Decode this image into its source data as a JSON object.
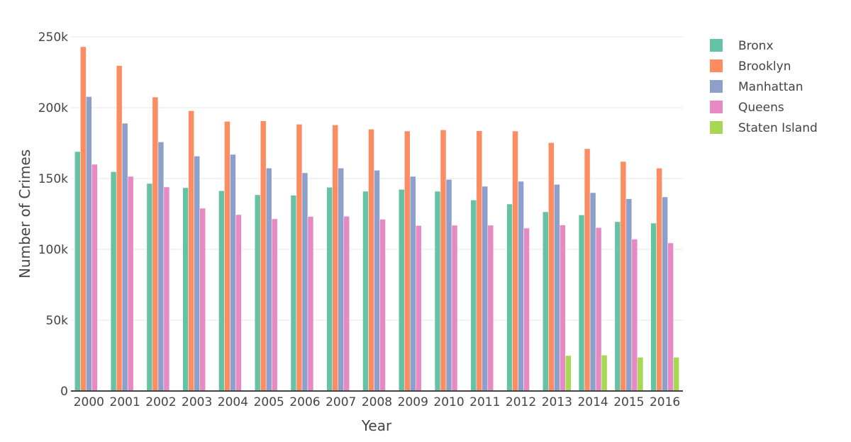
{
  "chart_data": {
    "type": "bar",
    "title": "",
    "xlabel": "Year",
    "ylabel": "Number of Crimes",
    "ylim": [
      0,
      250000
    ],
    "yticks": [
      0,
      50000,
      100000,
      150000,
      200000,
      250000
    ],
    "ytick_labels": [
      "0",
      "50k",
      "100k",
      "150k",
      "200k",
      "250k"
    ],
    "grid": true,
    "legend_position": "right",
    "categories": [
      "2000",
      "2001",
      "2002",
      "2003",
      "2004",
      "2005",
      "2006",
      "2007",
      "2008",
      "2009",
      "2010",
      "2011",
      "2012",
      "2013",
      "2014",
      "2015",
      "2016"
    ],
    "series": [
      {
        "name": "Bronx",
        "color": "#66c2a5",
        "values": [
          169000,
          154800,
          146500,
          143500,
          141300,
          138500,
          138200,
          143800,
          141000,
          142300,
          141000,
          134800,
          132000,
          126500,
          124300,
          119500,
          118500
        ]
      },
      {
        "name": "Brooklyn",
        "color": "#fc8d62",
        "values": [
          243000,
          229700,
          207500,
          197800,
          190300,
          190700,
          188300,
          187800,
          184800,
          183500,
          184300,
          183700,
          183500,
          175300,
          171000,
          162000,
          157300
        ]
      },
      {
        "name": "Manhattan",
        "color": "#8da0cb",
        "values": [
          207800,
          189000,
          175800,
          165800,
          167000,
          157300,
          154000,
          157300,
          155800,
          151500,
          149300,
          144500,
          148000,
          145800,
          140000,
          135700,
          137000
        ]
      },
      {
        "name": "Queens",
        "color": "#e78ac3",
        "values": [
          160000,
          151500,
          144000,
          129000,
          124500,
          121500,
          123200,
          123300,
          121200,
          116800,
          117000,
          117000,
          115000,
          117200,
          115300,
          107200,
          104500
        ]
      },
      {
        "name": "Staten Island",
        "color": "#a6d854",
        "values": [
          0,
          0,
          0,
          0,
          0,
          0,
          0,
          0,
          0,
          0,
          0,
          0,
          0,
          25000,
          25300,
          23800,
          23800
        ]
      }
    ]
  }
}
